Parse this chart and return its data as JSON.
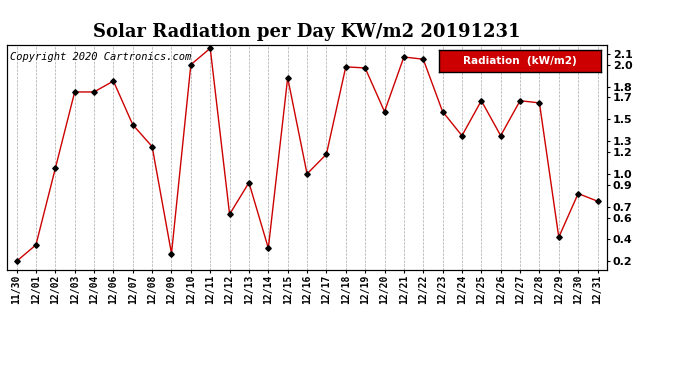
{
  "title": "Solar Radiation per Day KW/m2 20191231",
  "copyright": "Copyright 2020 Cartronics.com",
  "legend_label": "Radiation  (kW/m2)",
  "x_labels": [
    "11/30",
    "12/01",
    "12/02",
    "12/03",
    "12/04",
    "12/06",
    "12/07",
    "12/08",
    "12/09",
    "12/10",
    "12/11",
    "12/12",
    "12/13",
    "12/14",
    "12/15",
    "12/16",
    "12/17",
    "12/18",
    "12/19",
    "12/20",
    "12/21",
    "12/22",
    "12/23",
    "12/24",
    "12/25",
    "12/26",
    "12/27",
    "12/28",
    "12/29",
    "12/30",
    "12/31"
  ],
  "y_values": [
    0.2,
    0.35,
    1.05,
    1.75,
    1.75,
    1.85,
    1.45,
    1.25,
    0.27,
    2.0,
    2.15,
    0.63,
    0.92,
    0.32,
    1.88,
    1.0,
    1.18,
    1.98,
    1.97,
    1.57,
    2.07,
    2.05,
    1.57,
    1.35,
    1.67,
    1.35,
    1.67,
    1.65,
    0.42,
    0.82,
    0.75
  ],
  "ylim": [
    0.12,
    2.18
  ],
  "yticks": [
    0.2,
    0.4,
    0.6,
    0.7,
    0.9,
    1.0,
    1.2,
    1.3,
    1.5,
    1.7,
    1.8,
    2.0,
    2.1
  ],
  "line_color": "#cc0000",
  "marker_color": "#000000",
  "grid_color": "#aaaaaa",
  "bg_color": "#ffffff",
  "legend_bg": "#cc0000",
  "legend_fg": "#ffffff",
  "title_fontsize": 13,
  "copyright_fontsize": 7.5,
  "tick_fontsize": 8,
  "xtick_fontsize": 7
}
